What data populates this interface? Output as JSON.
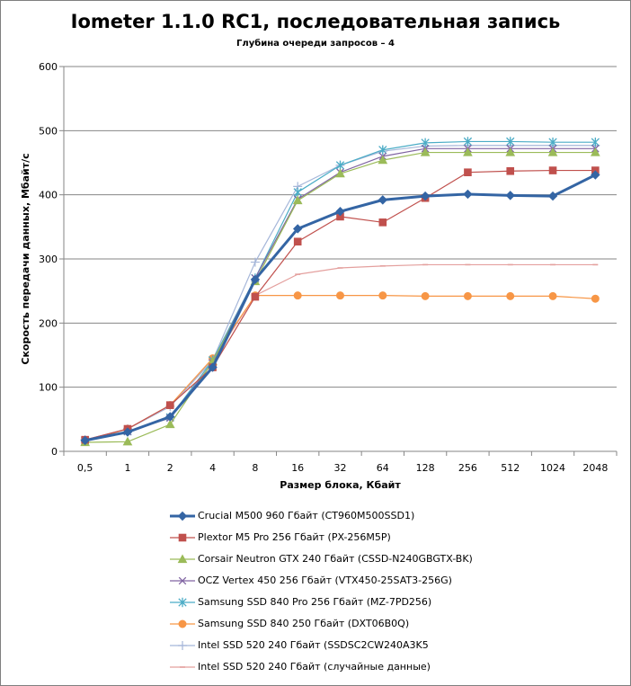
{
  "chart_data": {
    "type": "line",
    "title": "Iometer 1.1.0 RC1, последовательная запись",
    "subtitle": "Глубина очереди запросов – 4",
    "xlabel": "Размер блока, Кбайт",
    "ylabel": "Скорость передачи данных, Мбайт/с",
    "categories": [
      "0,5",
      "1",
      "2",
      "4",
      "8",
      "16",
      "32",
      "64",
      "128",
      "256",
      "512",
      "1024",
      "2048"
    ],
    "ylim": [
      0,
      600
    ],
    "yticks": [
      "0",
      "100",
      "200",
      "300",
      "400",
      "500",
      "600"
    ],
    "grid": true,
    "legend_position": "bottom",
    "series": [
      {
        "name": "Crucial M500 960 Гбайт (CT960M500SSD1)",
        "color": "#3465a4",
        "marker": "diamond",
        "values": [
          17,
          30,
          54,
          131,
          268,
          347,
          374,
          392,
          398,
          401,
          399,
          398,
          431
        ]
      },
      {
        "name": "Plextor M5 Pro 256 Гбайт (PX-256M5P)",
        "color": "#c0504d",
        "marker": "square",
        "values": [
          18,
          35,
          72,
          131,
          241,
          327,
          366,
          357,
          395,
          435,
          437,
          438,
          438
        ]
      },
      {
        "name": "Corsair Neutron GTX 240 Гбайт (CSSD-N240GBGTX-BK)",
        "color": "#9bbb59",
        "marker": "triangle",
        "values": [
          14,
          15,
          42,
          140,
          265,
          391,
          433,
          454,
          466,
          466,
          466,
          466,
          466
        ]
      },
      {
        "name": "OCZ Vertex  450 256 Гбайт (VTX450-25SAT3-256G)",
        "color": "#8064a2",
        "marker": "x",
        "values": [
          16,
          31,
          52,
          138,
          270,
          393,
          435,
          460,
          472,
          472,
          472,
          472,
          472
        ]
      },
      {
        "name": "Samsung SSD 840 Pro 256 Гбайт (MZ-7PD256)",
        "color": "#4bacc6",
        "marker": "asterisk",
        "values": [
          16,
          31,
          53,
          142,
          270,
          404,
          446,
          470,
          481,
          483,
          483,
          482,
          482
        ]
      },
      {
        "name": "Samsung SSD 840 250 Гбайт (DXT06B0Q)",
        "color": "#f79646",
        "marker": "circle",
        "values": [
          16,
          35,
          72,
          145,
          243,
          243,
          243,
          243,
          242,
          242,
          242,
          242,
          238
        ]
      },
      {
        "name": "Intel SSD 520 240 Гбайт (SSDSC2CW240A3K5",
        "color": "#a5b6d9",
        "marker": "plus",
        "values": [
          18,
          35,
          70,
          142,
          295,
          413,
          446,
          468,
          476,
          477,
          477,
          477,
          477
        ]
      },
      {
        "name": "Intel SSD 520 240 Гбайт (случайные данные)",
        "color": "#e4a09e",
        "marker": "dash",
        "values": [
          18,
          35,
          70,
          142,
          243,
          276,
          286,
          289,
          291,
          291,
          291,
          291,
          291
        ]
      }
    ]
  }
}
